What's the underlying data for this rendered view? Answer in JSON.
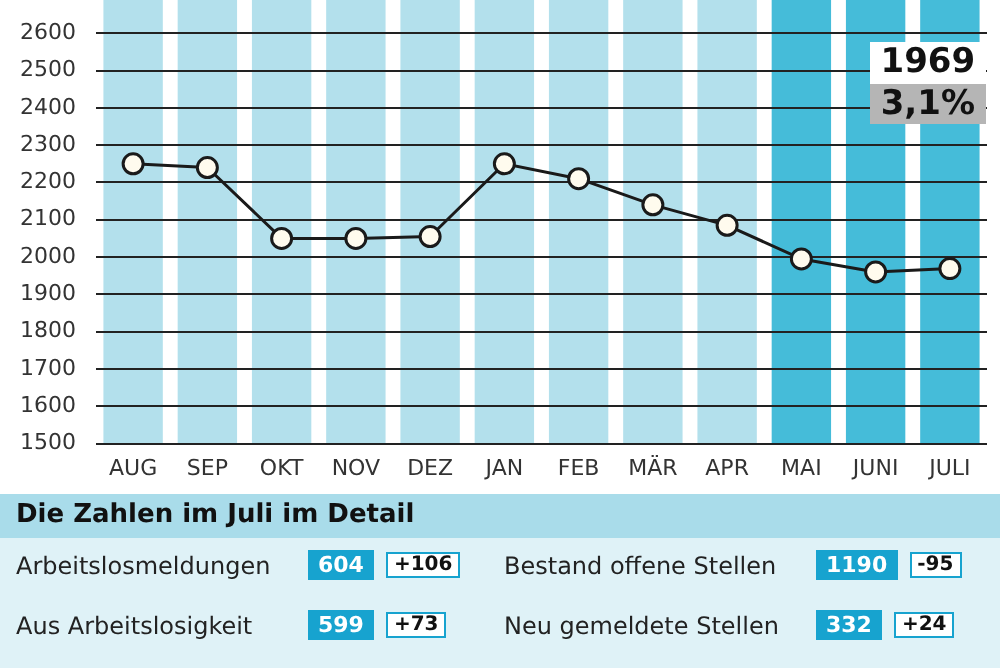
{
  "chart_data": {
    "type": "line",
    "categories": [
      "AUG",
      "SEP",
      "OKT",
      "NOV",
      "DEZ",
      "JAN",
      "FEB",
      "MÄR",
      "APR",
      "MAI",
      "JUNI",
      "JULI"
    ],
    "values": [
      2250,
      2240,
      2050,
      2050,
      2055,
      2250,
      2210,
      2140,
      2085,
      1995,
      1960,
      1969
    ],
    "color": "#1a1a1a",
    "marker": "circle",
    "line_style": "solid",
    "grid": "y",
    "legend": false,
    "ylim": [
      1500,
      2600
    ],
    "yticks": [
      1500,
      1600,
      1700,
      1800,
      1900,
      2000,
      2100,
      2200,
      2300,
      2400,
      2500,
      2600
    ],
    "bands": [
      {
        "axis": "x",
        "from": "AUG",
        "to": "AUG",
        "color": "#b3e0ec"
      },
      {
        "axis": "x",
        "from": "SEP",
        "to": "SEP",
        "color": "#b3e0ec"
      },
      {
        "axis": "x",
        "from": "OKT",
        "to": "OKT",
        "color": "#b3e0ec"
      },
      {
        "axis": "x",
        "from": "NOV",
        "to": "NOV",
        "color": "#b3e0ec"
      },
      {
        "axis": "x",
        "from": "DEZ",
        "to": "DEZ",
        "color": "#b3e0ec"
      },
      {
        "axis": "x",
        "from": "JAN",
        "to": "JAN",
        "color": "#b3e0ec"
      },
      {
        "axis": "x",
        "from": "FEB",
        "to": "FEB",
        "color": "#b3e0ec"
      },
      {
        "axis": "x",
        "from": "MÄR",
        "to": "MÄR",
        "color": "#b3e0ec"
      },
      {
        "axis": "x",
        "from": "APR",
        "to": "APR",
        "color": "#b3e0ec"
      },
      {
        "axis": "x",
        "from": "MAI",
        "to": "MAI",
        "color": "#45bcd9"
      },
      {
        "axis": "x",
        "from": "JUNI",
        "to": "JUNI",
        "color": "#45bcd9"
      },
      {
        "axis": "x",
        "from": "JULI",
        "to": "JULI",
        "color": "#45bcd9"
      }
    ],
    "annotations": [
      "1969",
      "3,1%",
      "Die Zahlen im Juli im Detail",
      "Arbeitslosmeldungen",
      "604",
      "+106",
      "Bestand offene Stellen",
      "1190",
      "-95",
      "Aus Arbeitslosigkeit",
      "599",
      "+73",
      "Neu gemeldete Stellen",
      "332",
      "+24"
    ]
  }
}
